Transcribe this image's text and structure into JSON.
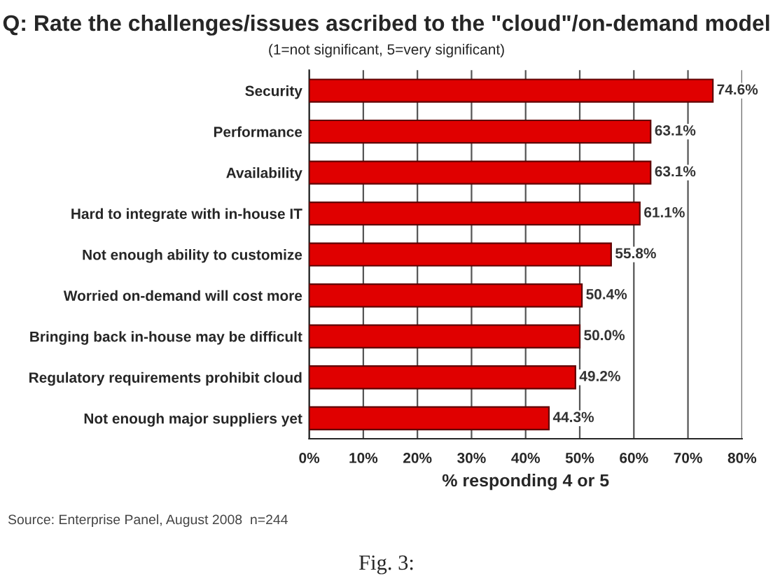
{
  "chart_data": {
    "type": "bar",
    "orientation": "horizontal",
    "title": "Q: Rate the challenges/issues ascribed to the \"cloud\"/on-demand model",
    "subtitle": "(1=not significant, 5=very significant)",
    "xlabel": "% responding 4 or 5",
    "categories": [
      "Security",
      "Performance",
      "Availability",
      "Hard to integrate with in-house IT",
      "Not enough ability to customize",
      "Worried on-demand will cost more",
      "Bringing back in-house may be difficult",
      "Regulatory requirements prohibit cloud",
      "Not enough major suppliers yet"
    ],
    "values": [
      74.6,
      63.1,
      63.1,
      61.1,
      55.8,
      50.4,
      50.0,
      49.2,
      44.3
    ],
    "value_labels": [
      "74.6%",
      "63.1%",
      "63.1%",
      "61.1%",
      "55.8%",
      "50.4%",
      "50.0%",
      "49.2%",
      "44.3%"
    ],
    "color": "#e00000",
    "xlim": [
      0,
      80
    ],
    "xticks": [
      {
        "value": 0,
        "label": "0%"
      },
      {
        "value": 10,
        "label": "10%"
      },
      {
        "value": 20,
        "label": "20%"
      },
      {
        "value": 30,
        "label": "30%"
      },
      {
        "value": 40,
        "label": "40%"
      },
      {
        "value": 50,
        "label": "50%"
      },
      {
        "value": 60,
        "label": "60%"
      },
      {
        "value": 70,
        "label": "70%"
      },
      {
        "value": 80,
        "label": "80%"
      }
    ],
    "grid": "x",
    "annotations": [
      "Source: Enterprise Panel, August 2008  n=244",
      "Fig. 3:"
    ]
  }
}
